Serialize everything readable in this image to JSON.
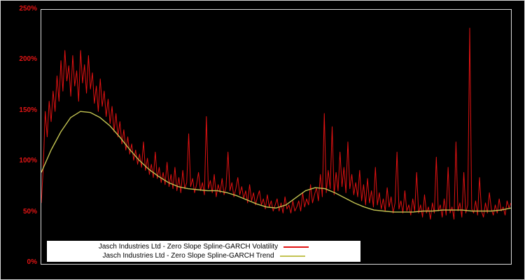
{
  "page": {
    "background": "#000000",
    "frame_color": "#d9d9d9"
  },
  "y_axis": {
    "color": "#e31414",
    "labels": [
      "250%",
      "200%",
      "150%",
      "100%",
      "50%",
      "0%"
    ]
  },
  "chart_data": {
    "type": "line",
    "title": "",
    "xlabel": "",
    "ylabel": "",
    "x_tick_labels": [],
    "y_tick_labels_percent": [
      0,
      50,
      100,
      150,
      200,
      250
    ],
    "ylim": [
      0,
      250
    ],
    "grid": false,
    "background": "#000000",
    "legend_position": "bottom-center",
    "series": [
      {
        "name": "Jasch Industries Ltd - Zero Slope Spline-GARCH Volatility",
        "color": "#e11212",
        "unit": "percent",
        "values": [
          60,
          95,
          150,
          125,
          160,
          140,
          170,
          150,
          185,
          160,
          200,
          170,
          210,
          180,
          195,
          165,
          205,
          175,
          190,
          160,
          210,
          178,
          196,
          168,
          205,
          172,
          188,
          158,
          175,
          150,
          182,
          155,
          170,
          145,
          162,
          138,
          155,
          130,
          148,
          125,
          140,
          118,
          132,
          112,
          125,
          108,
          118,
          102,
          112,
          98,
          108,
          95,
          120,
          92,
          104,
          88,
          98,
          85,
          110,
          84,
          95,
          80,
          90,
          78,
          100,
          76,
          88,
          74,
          95,
          72,
          85,
          70,
          92,
          74,
          80,
          128,
          76,
          84,
          70,
          78,
          90,
          72,
          80,
          68,
          145,
          74,
          82,
          70,
          88,
          66,
          78,
          70,
          84,
          68,
          76,
          110,
          72,
          80,
          66,
          74,
          85,
          68,
          76,
          64,
          72,
          60,
          78,
          62,
          70,
          58,
          66,
          72,
          58,
          64,
          54,
          68,
          56,
          62,
          52,
          58,
          64,
          52,
          60,
          50,
          66,
          54,
          58,
          50,
          62,
          52,
          56,
          62,
          52,
          70,
          56,
          64,
          58,
          78,
          60,
          68,
          75,
          62,
          88,
          66,
          148,
          70,
          92,
          74,
          135,
          68,
          90,
          72,
          110,
          76,
          95,
          70,
          120,
          74,
          88,
          68,
          80,
          66,
          92,
          62,
          78,
          58,
          84,
          60,
          72,
          56,
          95,
          58,
          70,
          54,
          64,
          52,
          75,
          56,
          66,
          50,
          60,
          110,
          54,
          62,
          50,
          72,
          52,
          58,
          48,
          64,
          52,
          90,
          50,
          58,
          46,
          68,
          50,
          56,
          44,
          60,
          50,
          105,
          52,
          58,
          46,
          64,
          48,
          95,
          50,
          56,
          44,
          120,
          52,
          60,
          46,
          90,
          50,
          58,
          232,
          54,
          50,
          62,
          48,
          85,
          52,
          46,
          60,
          50,
          70,
          54,
          48,
          58,
          50,
          64,
          52,
          56,
          48,
          62,
          55,
          60
        ]
      },
      {
        "name": "Jasch Industries Ltd - Zero Slope Spline-GARCH Trend",
        "color": "#c3c352",
        "unit": "percent",
        "values": [
          90,
          112,
          130,
          144,
          150,
          149,
          144,
          136,
          125,
          113,
          102,
          93,
          86,
          80,
          76,
          74,
          73,
          72,
          72,
          70,
          67,
          63,
          59,
          56,
          55,
          58,
          65,
          72,
          75,
          74,
          70,
          65,
          60,
          56,
          53,
          52,
          51,
          51,
          51,
          52,
          52,
          53,
          53,
          53,
          52,
          52,
          52,
          53,
          55
        ]
      }
    ]
  }
}
